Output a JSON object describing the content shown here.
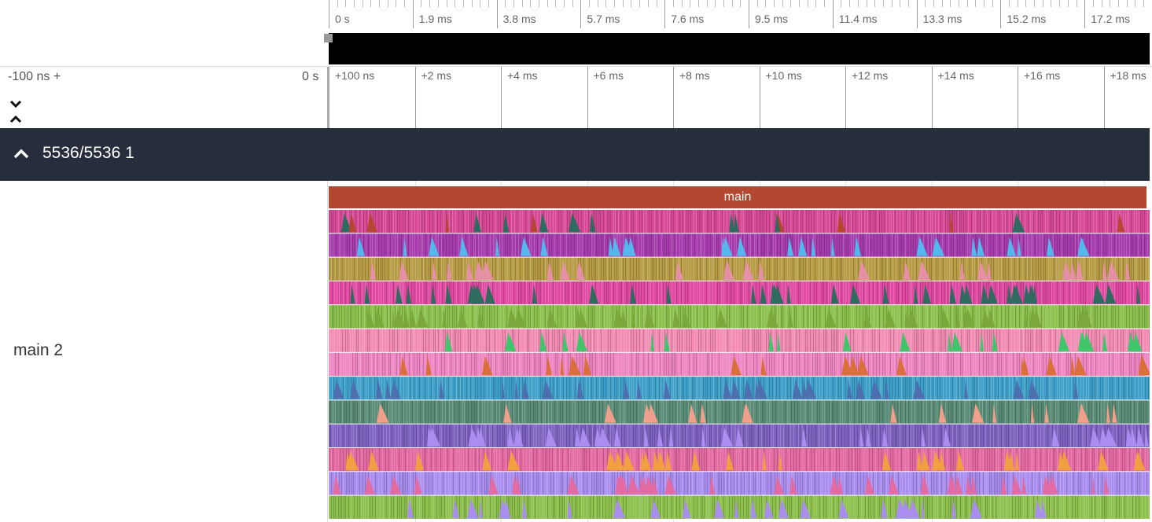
{
  "overview": {
    "labels": [
      "0 s",
      "1.9 ms",
      "3.8 ms",
      "5.7 ms",
      "7.6 ms",
      "9.5 ms",
      "11.4 ms",
      "13.3 ms",
      "15.2 ms",
      "17.2 ms"
    ]
  },
  "time_axis": {
    "offset_label": "-100 ns +",
    "zero_label": "0 s",
    "labels": [
      "+100 ns",
      "+2 ms",
      "+4 ms",
      "+6 ms",
      "+8 ms",
      "+10 ms",
      "+12 ms",
      "+14 ms",
      "+16 ms",
      "+18 ms"
    ]
  },
  "process": {
    "title": "5536/5536 1"
  },
  "thread": {
    "label": "main 2",
    "top_slice": "main",
    "rows": [
      {
        "base": "#d84a96",
        "accents": [
          "#2f6b5e",
          "#b3472f"
        ]
      },
      {
        "base": "#a63cad",
        "accents": [
          "#52b8ee"
        ]
      },
      {
        "base": "#b89c45",
        "accents": [
          "#e88fa8"
        ]
      },
      {
        "base": "#e04aa2",
        "accents": [
          "#2f6b5e"
        ]
      },
      {
        "base": "#8ec04e",
        "accents": [
          "#7aa83a"
        ]
      },
      {
        "base": "#f28cb4",
        "accents": [
          "#3fc66a"
        ]
      },
      {
        "base": "#ee86c4",
        "accents": [
          "#d9703a"
        ]
      },
      {
        "base": "#3ea0c8",
        "accents": [
          "#4d6fb0"
        ]
      },
      {
        "base": "#5a8c78",
        "accents": [
          "#f0a08a"
        ]
      },
      {
        "base": "#7e62c0",
        "accents": [
          "#a98ef0"
        ]
      },
      {
        "base": "#e46aa2",
        "accents": [
          "#f0a040"
        ]
      },
      {
        "base": "#a98ef0",
        "accents": [
          "#e46aa2"
        ]
      },
      {
        "base": "#8ec04e",
        "accents": [
          "#a98ef0"
        ]
      }
    ]
  }
}
